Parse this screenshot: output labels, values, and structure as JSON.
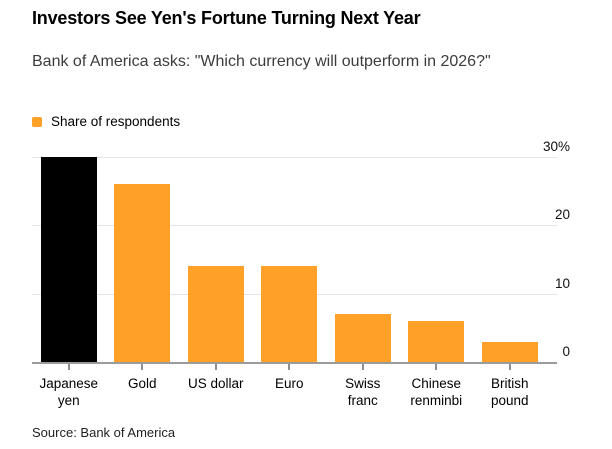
{
  "header": {
    "title": "Investors See Yen's Fortune Turning Next Year",
    "subtitle": "Bank of America asks: \"Which currency will outperform in 2026?\""
  },
  "legend": {
    "label": "Share of respondents",
    "swatch_color": "#FFA028"
  },
  "source": "Source: Bank of America",
  "colors": {
    "accent_orange": "#FFA028",
    "highlight_black": "#000000",
    "gridline": "#e4e4e4",
    "axis": "#9b9b9b",
    "subtitle_text": "#3c3c3c"
  },
  "chart_data": {
    "type": "bar",
    "title": "Investors See Yen's Fortune Turning Next Year",
    "subtitle": "Bank of America asks: \"Which currency will outperform in 2026?\"",
    "series_name": "Share of respondents",
    "categories": [
      "Japanese yen",
      "Gold",
      "US dollar",
      "Euro",
      "Swiss franc",
      "Chinese renminbi",
      "British pound"
    ],
    "category_lines": [
      [
        "Japanese",
        "yen"
      ],
      [
        "Gold"
      ],
      [
        "US dollar"
      ],
      [
        "Euro"
      ],
      [
        "Swiss",
        "franc"
      ],
      [
        "Chinese",
        "renminbi"
      ],
      [
        "British",
        "pound"
      ]
    ],
    "values": [
      30,
      26,
      14,
      14,
      7,
      6,
      3
    ],
    "unit": "%",
    "bar_colors": [
      "#000000",
      "#FFA028",
      "#FFA028",
      "#FFA028",
      "#FFA028",
      "#FFA028",
      "#FFA028"
    ],
    "xlabel": "",
    "ylabel": "",
    "ylim": [
      0,
      30
    ],
    "yticks": [
      {
        "value": 30,
        "label": "30%"
      },
      {
        "value": 20,
        "label": "20"
      },
      {
        "value": 10,
        "label": "10"
      },
      {
        "value": 0,
        "label": "0"
      }
    ],
    "grid": "horizontal",
    "legend_position": "top-left",
    "axis_side": "right",
    "source": "Source: Bank of America"
  }
}
